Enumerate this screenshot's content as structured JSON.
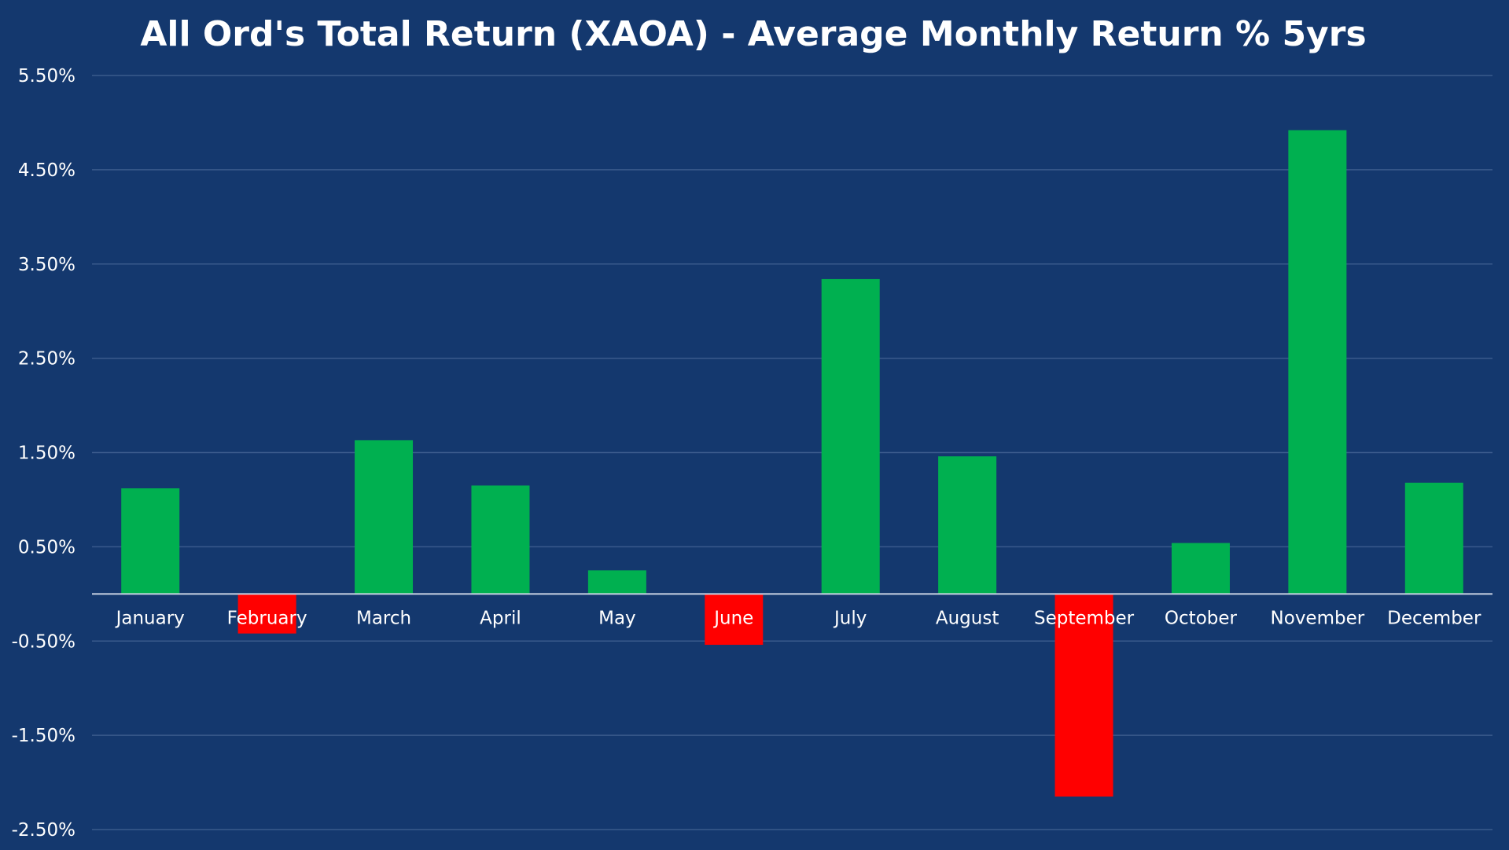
{
  "chart_data": {
    "type": "bar",
    "title": "All Ord's Total Return (XAOA) - Average Monthly Return % 5yrs",
    "xlabel": "",
    "ylabel": "",
    "categories": [
      "January",
      "February",
      "March",
      "April",
      "May",
      "June",
      "July",
      "August",
      "September",
      "October",
      "November",
      "December"
    ],
    "values": [
      1.12,
      -0.42,
      1.63,
      1.15,
      0.25,
      -0.54,
      3.34,
      1.46,
      -2.15,
      0.54,
      4.92,
      1.18
    ],
    "ylim": [
      -2.5,
      5.5
    ],
    "yticks": [
      "5.50%",
      "4.50%",
      "3.50%",
      "2.50%",
      "1.50%",
      "0.50%",
      "-0.50%",
      "-1.50%",
      "-2.50%"
    ],
    "ytick_values": [
      5.5,
      4.5,
      3.5,
      2.5,
      1.5,
      0.5,
      -0.5,
      -1.5,
      -2.5
    ],
    "grid": true,
    "legend": "none",
    "colors": {
      "background": "#14386e",
      "positive": "#00b050",
      "negative": "#ff0000",
      "grid": "#3a5a8c",
      "text": "#ffffff"
    }
  }
}
